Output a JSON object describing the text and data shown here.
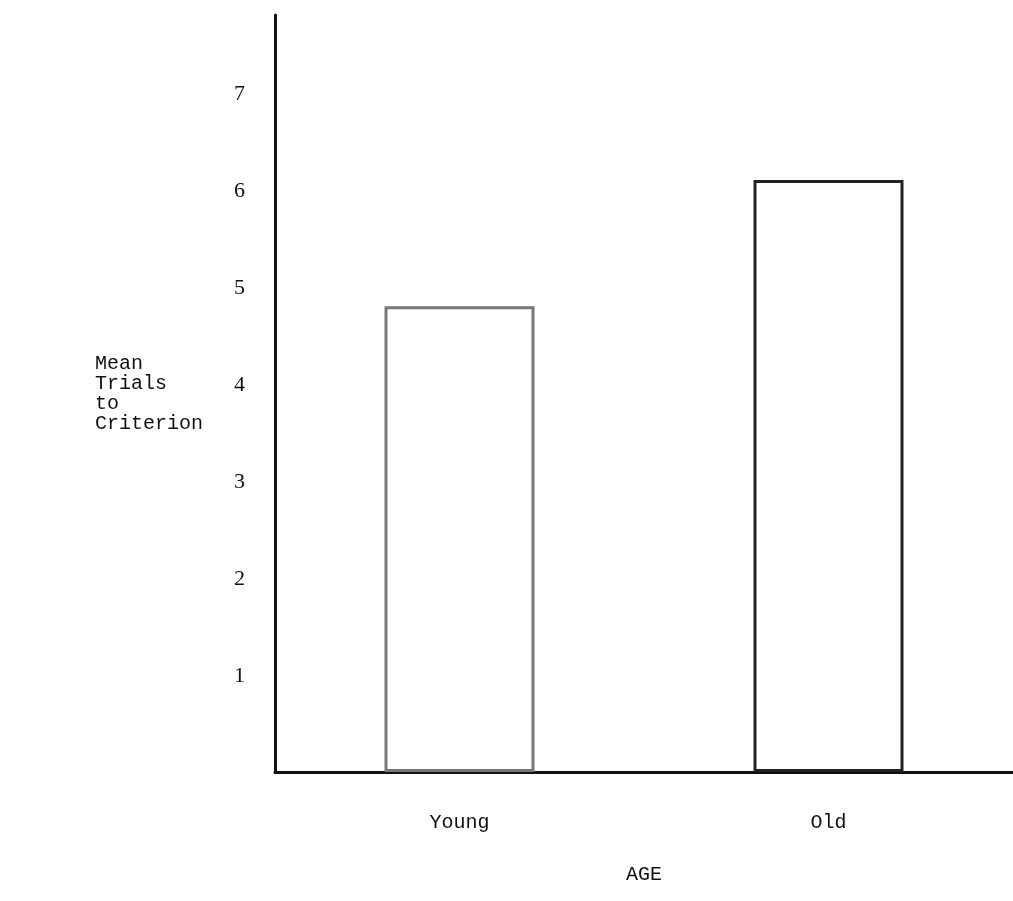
{
  "chart_data": {
    "type": "bar",
    "xlabel": "AGE",
    "ylabel": "Mean Trials to Criterion",
    "categories": [
      "Young",
      "Old"
    ],
    "values": [
      4.8,
      6.1
    ],
    "colors": [
      "#777777",
      "#222222"
    ],
    "ylim": [
      0,
      7.8
    ],
    "yticks": [
      1,
      2,
      3,
      4,
      5,
      6,
      7
    ],
    "grid": false
  }
}
